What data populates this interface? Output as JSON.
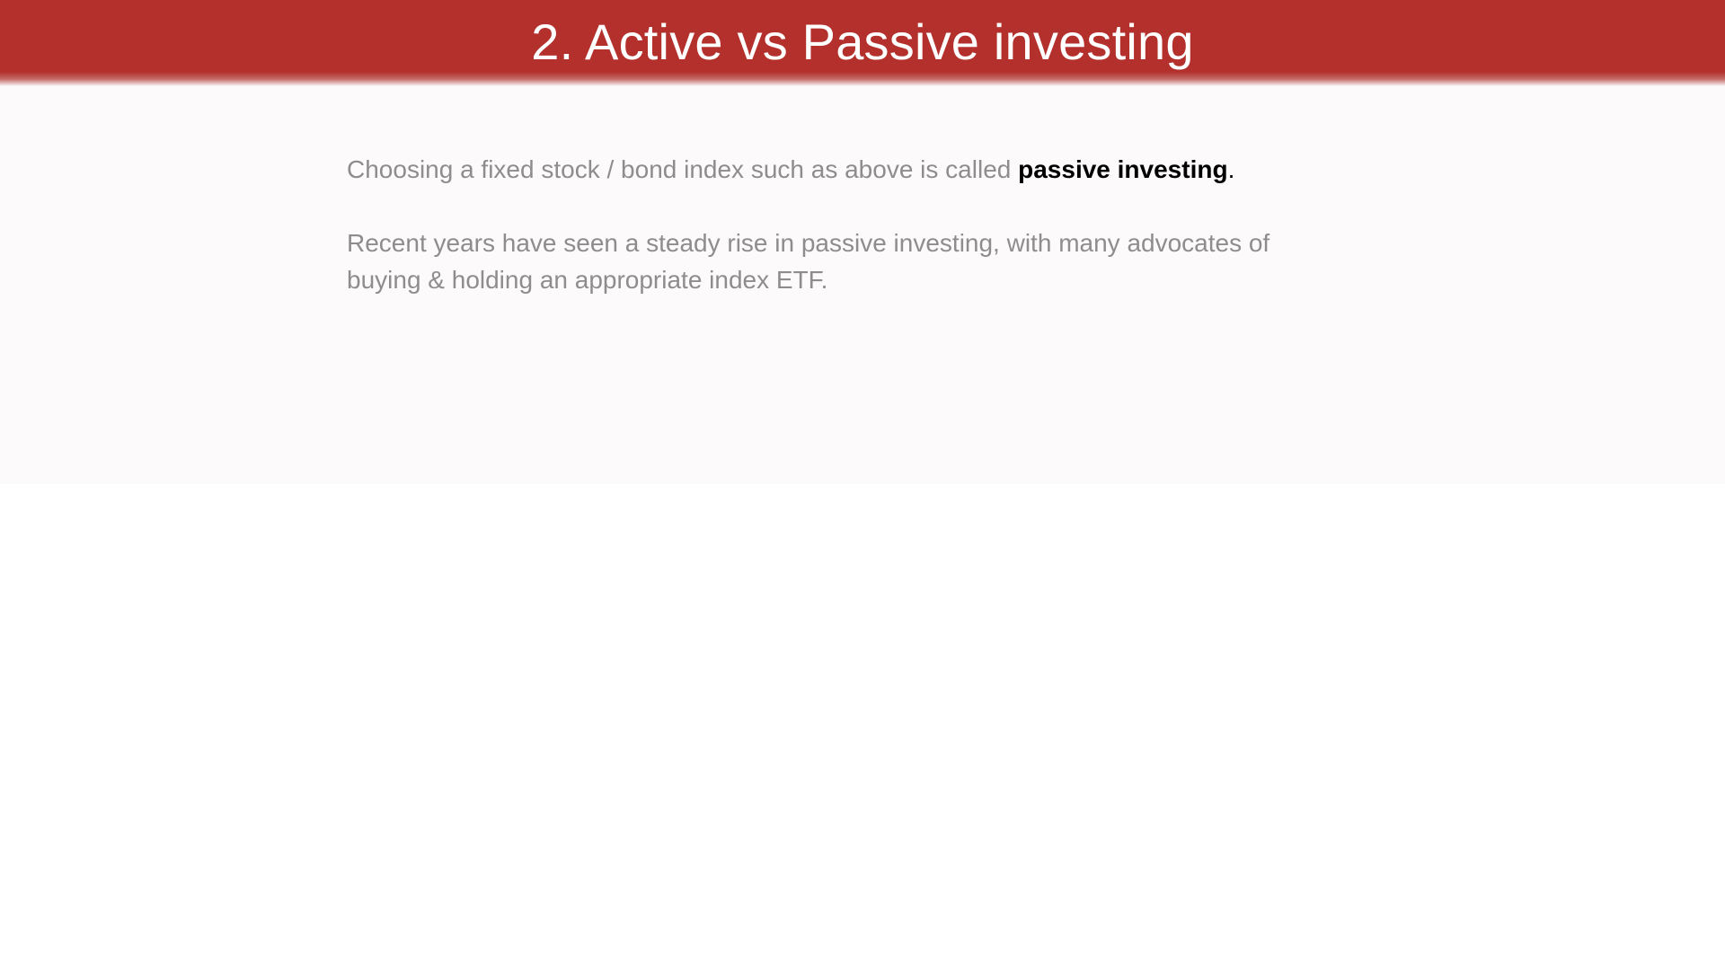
{
  "slide": {
    "title": "2. Active vs Passive investing",
    "paragraph_1": {
      "text_before": "Choosing a fixed stock / bond index such as above is called ",
      "emphasis": "passive investing",
      "text_after": "."
    },
    "paragraph_2": {
      "text": "Recent years have seen a steady rise in passive investing, with many advocates of buying & holding an appropriate index ETF."
    }
  },
  "colors": {
    "header_red": "#b3302c",
    "body_text_gray": "#8f8c8e",
    "emphasis_black": "#000000",
    "panel_background": "#fcfafb"
  }
}
